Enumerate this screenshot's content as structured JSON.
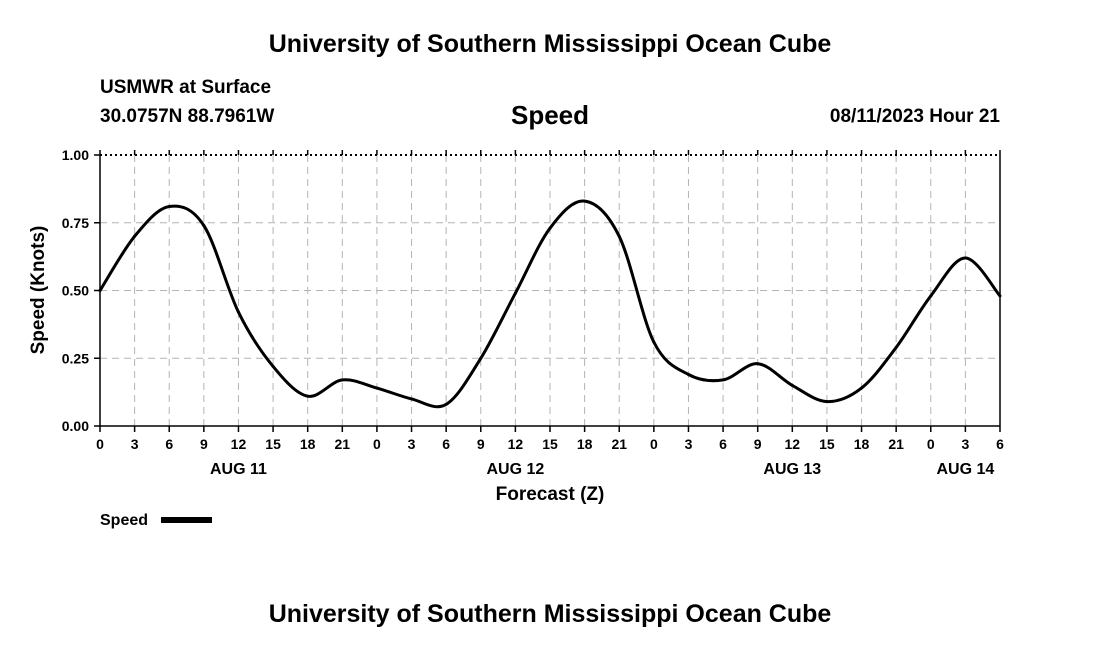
{
  "header": {
    "title": "University of Southern Mississippi Ocean Cube",
    "station": "USMWR at Surface",
    "coords": "30.0757N  88.7961W",
    "datetime": "08/11/2023 Hour 21"
  },
  "footer": {
    "title": "University of Southern Mississippi Ocean Cube"
  },
  "chart_data": {
    "type": "line",
    "title": "Speed",
    "xlabel": "Forecast (Z)",
    "ylabel": "Speed (Knots)",
    "ylim": [
      0,
      1
    ],
    "yticks": [
      "0.00",
      "0.25",
      "0.50",
      "0.75",
      "1.00"
    ],
    "xlim": [
      0,
      78
    ],
    "xticks": [
      "0",
      "3",
      "6",
      "9",
      "12",
      "15",
      "18",
      "21",
      "0",
      "3",
      "6",
      "9",
      "12",
      "15",
      "18",
      "21",
      "0",
      "3",
      "6",
      "9",
      "12",
      "15",
      "18",
      "21",
      "0",
      "3",
      "6"
    ],
    "day_labels": [
      {
        "label": "AUG 11",
        "x": 12
      },
      {
        "label": "AUG 12",
        "x": 36
      },
      {
        "label": "AUG 13",
        "x": 60
      },
      {
        "label": "AUG 14",
        "x": 75
      }
    ],
    "grid": true,
    "legend": "bottom-left",
    "series": [
      {
        "name": "Speed",
        "color": "#000000",
        "x": [
          0,
          3,
          6,
          9,
          12,
          15,
          18,
          21,
          24,
          27,
          30,
          33,
          36,
          39,
          42,
          45,
          48,
          51,
          54,
          57,
          60,
          63,
          66,
          69,
          72,
          75,
          78
        ],
        "values": [
          0.5,
          0.7,
          0.81,
          0.74,
          0.42,
          0.22,
          0.11,
          0.17,
          0.14,
          0.1,
          0.08,
          0.25,
          0.49,
          0.73,
          0.83,
          0.7,
          0.31,
          0.19,
          0.17,
          0.23,
          0.15,
          0.09,
          0.14,
          0.29,
          0.48,
          0.62,
          0.48
        ]
      }
    ]
  }
}
